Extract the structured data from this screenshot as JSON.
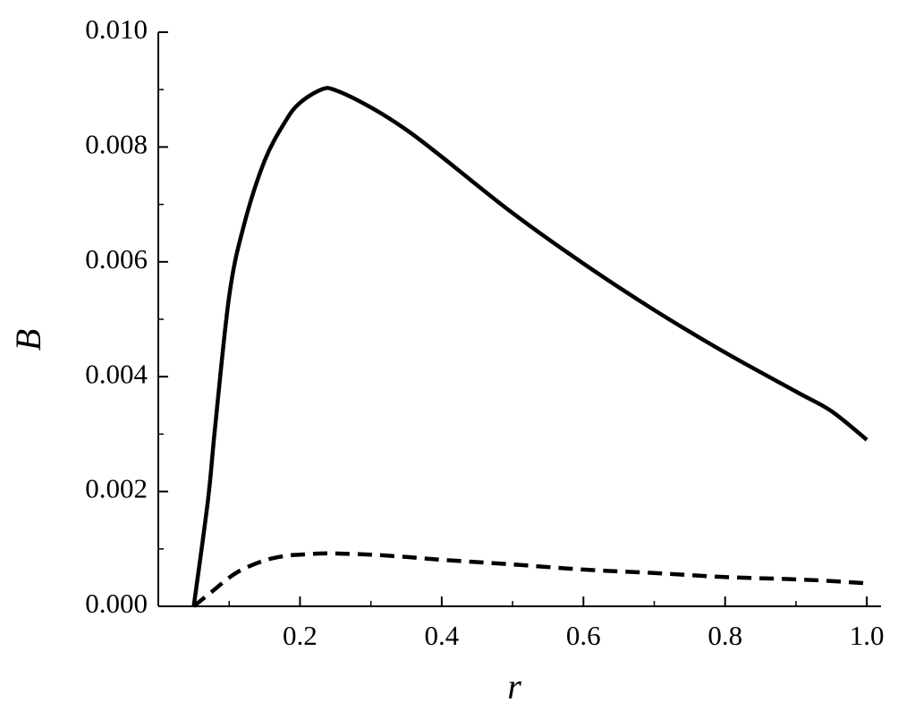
{
  "chart_data": {
    "type": "line",
    "x_label": "r",
    "y_label": "B",
    "x": [
      0.05,
      0.07,
      0.08,
      0.1,
      0.12,
      0.15,
      0.18,
      0.2,
      0.23,
      0.25,
      0.3,
      0.35,
      0.4,
      0.5,
      0.6,
      0.7,
      0.8,
      0.9,
      0.95,
      1.0
    ],
    "series": [
      {
        "color": "#000000",
        "dashed": false,
        "values": [
          0,
          0.00184,
          0.0031,
          0.0054,
          0.0066,
          0.00776,
          0.00846,
          0.00877,
          0.009,
          0.00899,
          0.00869,
          0.0083,
          0.00783,
          0.00685,
          0.00597,
          0.00516,
          0.00442,
          0.00374,
          0.0034,
          0.0029
        ]
      },
      {
        "color": "#000000",
        "dashed": true,
        "values": [
          0,
          0.0002,
          0.0003,
          0.0005,
          0.00065,
          0.0008,
          0.00088,
          0.0009,
          0.00092,
          0.00092,
          0.0009,
          0.00086,
          0.00081,
          0.00073,
          0.00064,
          0.00058,
          0.00051,
          0.00047,
          0.00044,
          0.0004
        ]
      }
    ],
    "xlim": [
      0,
      1.02
    ],
    "ylim": [
      0,
      0.01
    ],
    "xticks": [
      0.2,
      0.4,
      0.6,
      0.8,
      {
        "value": 1,
        "label": "1.0"
      }
    ],
    "yticks": [
      {
        "value": 0,
        "label": "0.000"
      },
      0.002,
      0.004,
      0.006,
      0.008,
      {
        "value": 0.01,
        "label": "0.010"
      }
    ],
    "xminorticks": [
      0.1,
      0.3,
      0.5,
      0.7,
      0.9
    ],
    "yminorticks": [
      0.001,
      0.003,
      0.005,
      0.007,
      0.009
    ],
    "grid": false
  }
}
